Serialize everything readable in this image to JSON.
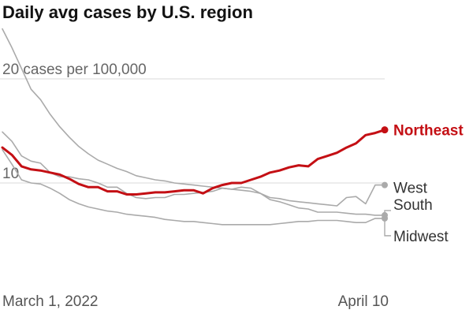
{
  "title": "Daily avg cases by U.S. region",
  "chart_data": {
    "type": "line",
    "title": "Daily avg cases by U.S. region",
    "xlabel": "",
    "ylabel": "",
    "x_start_label": "March 1, 2022",
    "x_end_label": "April 10",
    "x_days": 41,
    "ylim": [
      0,
      25
    ],
    "y_gridlines": [
      10,
      20
    ],
    "y_tick_labels": [
      "10",
      "20 cases per 100,000"
    ],
    "grid": true,
    "highlight_color": "#c40f14",
    "muted_color": "#aaaaaa",
    "series": [
      {
        "name": "Northeast",
        "highlight": true,
        "values": [
          13.4,
          12.7,
          11.6,
          11.3,
          11.2,
          11.0,
          10.8,
          10.4,
          9.9,
          9.6,
          9.6,
          9.2,
          9.2,
          8.9,
          8.9,
          9.0,
          9.1,
          9.1,
          9.2,
          9.3,
          9.3,
          9.0,
          9.5,
          9.8,
          10.0,
          10.0,
          10.3,
          10.6,
          11.0,
          11.2,
          11.5,
          11.7,
          11.6,
          12.3,
          12.6,
          12.9,
          13.4,
          13.8,
          14.6,
          14.8,
          15.1
        ]
      },
      {
        "name": "West",
        "highlight": false,
        "values": [
          24.8,
          23.0,
          21.0,
          19.0,
          18.0,
          16.6,
          15.4,
          14.4,
          13.5,
          12.8,
          12.2,
          11.8,
          11.4,
          11.1,
          10.7,
          10.5,
          10.3,
          10.2,
          10.0,
          9.9,
          9.8,
          9.7,
          9.6,
          9.5,
          9.4,
          9.3,
          9.2,
          9.0,
          8.6,
          8.5,
          8.3,
          8.2,
          8.1,
          8.0,
          7.9,
          7.8,
          8.6,
          8.7,
          8.0,
          9.8,
          9.8
        ]
      },
      {
        "name": "South",
        "highlight": false,
        "values": [
          14.9,
          14.0,
          12.6,
          12.1,
          11.9,
          11.0,
          10.6,
          10.6,
          10.4,
          10.3,
          10.0,
          9.6,
          9.6,
          9.0,
          8.6,
          8.5,
          8.6,
          8.6,
          8.9,
          8.9,
          9.0,
          9.1,
          9.2,
          9.5,
          9.4,
          9.6,
          9.5,
          9.0,
          8.4,
          8.2,
          7.9,
          7.6,
          7.5,
          7.2,
          7.2,
          7.2,
          7.1,
          7.0,
          7.0,
          6.9,
          6.9
        ]
      },
      {
        "name": "Midwest",
        "highlight": false,
        "values": [
          13.2,
          11.8,
          10.3,
          10.0,
          9.9,
          9.5,
          9.0,
          8.4,
          8.0,
          7.7,
          7.5,
          7.3,
          7.2,
          7.0,
          6.9,
          6.8,
          6.7,
          6.5,
          6.4,
          6.3,
          6.3,
          6.2,
          6.1,
          6.0,
          6.0,
          6.0,
          6.0,
          6.0,
          6.0,
          6.1,
          6.2,
          6.3,
          6.3,
          6.4,
          6.4,
          6.4,
          6.3,
          6.2,
          6.2,
          6.6,
          6.6
        ]
      }
    ]
  }
}
